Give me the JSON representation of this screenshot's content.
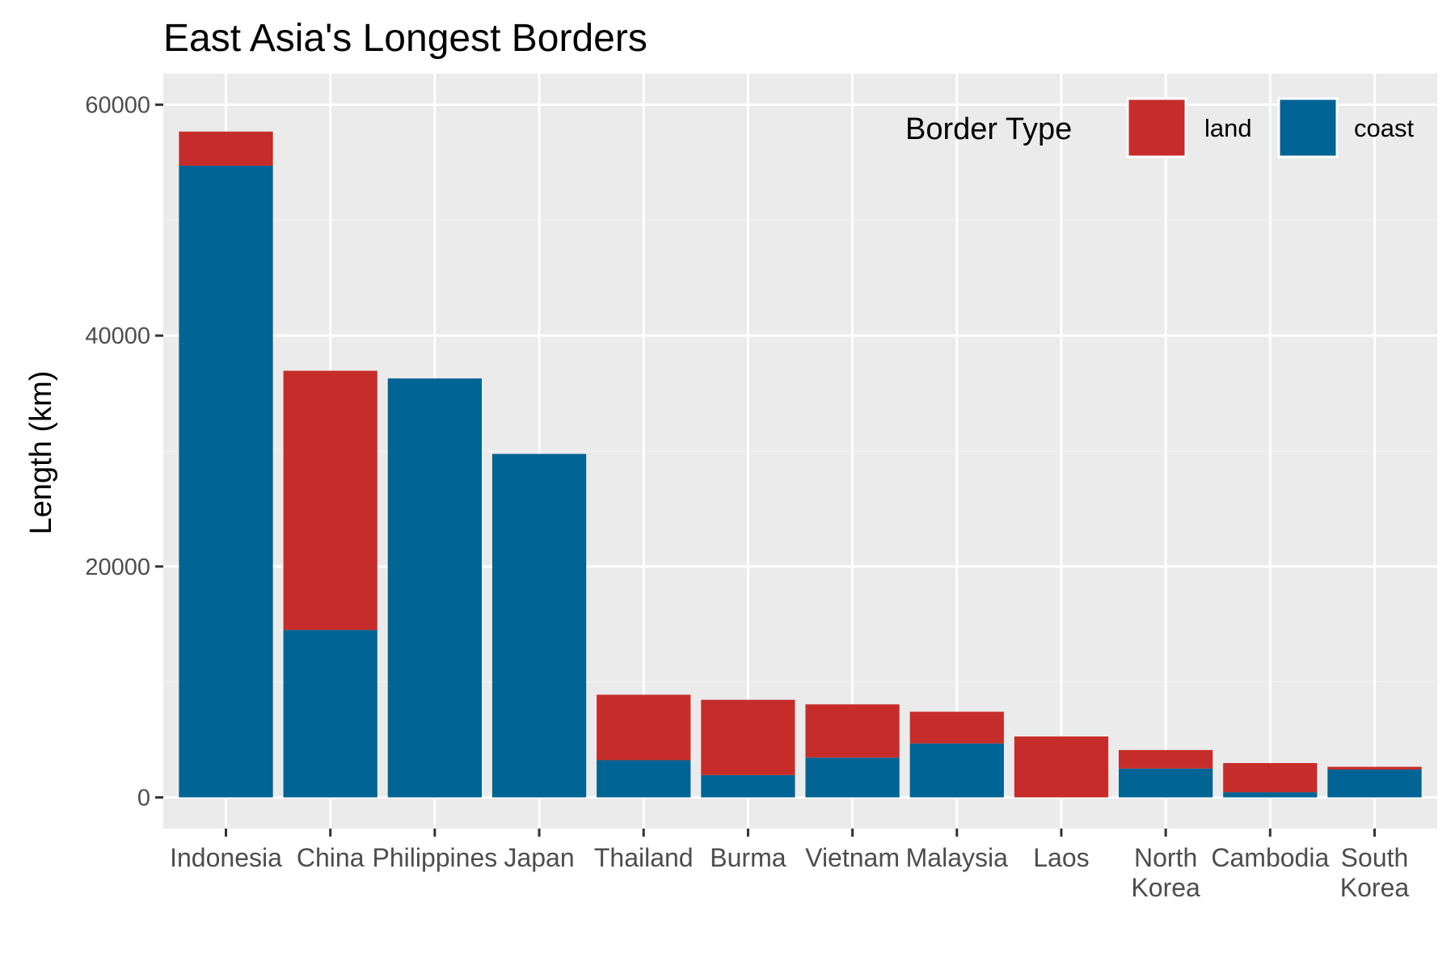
{
  "chart_data": {
    "type": "bar",
    "stacked": true,
    "title": "East Asia's Longest Borders",
    "xlabel": "",
    "ylabel": "Length (km)",
    "ylim": [
      -2700,
      62700
    ],
    "yticks": [
      0,
      20000,
      40000,
      60000
    ],
    "grid": true,
    "legend": {
      "title": "Border Type",
      "placement": "top-right",
      "entries": [
        "land",
        "coast"
      ]
    },
    "categories": [
      "Indonesia",
      "China",
      "Philippines",
      "Japan",
      "Thailand",
      "Burma",
      "Vietnam",
      "Malaysia",
      "Laos",
      "North Korea",
      "Cambodia",
      "South Korea"
    ],
    "category_lines": [
      [
        "Indonesia"
      ],
      [
        "China"
      ],
      [
        "Philippines"
      ],
      [
        "Japan"
      ],
      [
        "Thailand"
      ],
      [
        "Burma"
      ],
      [
        "Vietnam"
      ],
      [
        "Malaysia"
      ],
      [
        "Laos"
      ],
      [
        "North",
        "Korea"
      ],
      [
        "Cambodia"
      ],
      [
        "South",
        "Korea"
      ]
    ],
    "series": [
      {
        "name": "coast",
        "color": "#006494",
        "values": [
          54716,
          14500,
          36289,
          29751,
          3219,
          1930,
          3444,
          4675,
          0,
          2495,
          443,
          2413
        ]
      },
      {
        "name": "land",
        "color": "#c62d2a",
        "values": [
          2958,
          22457,
          0,
          0,
          5673,
          6522,
          4616,
          2742,
          5274,
          1607,
          2530,
          237
        ]
      }
    ],
    "colors": {
      "panel_background": "#ebebeb",
      "grid_major": "#ffffff",
      "grid_minor": "#f2f2f2",
      "land": "#c62d2a",
      "coast": "#006494"
    }
  }
}
